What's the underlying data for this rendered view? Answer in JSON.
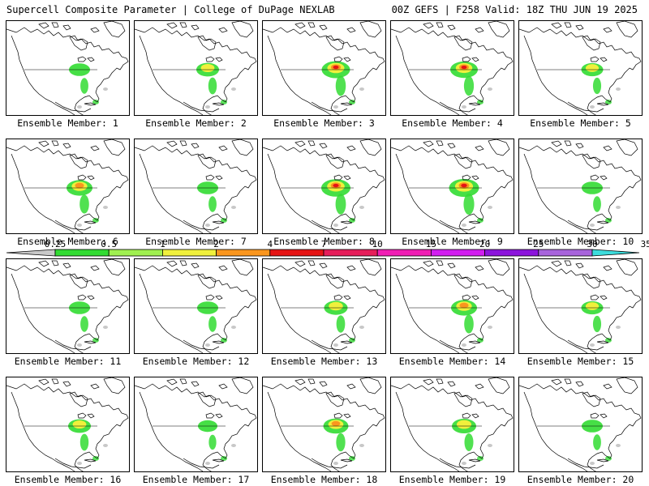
{
  "header": {
    "left_title": "Supercell Composite Parameter | College of DuPage NEXLAB",
    "right_title": "00Z GEFS | F258 Valid: 18Z THU JUN 19 2025"
  },
  "colorbar": {
    "labels": [
      "0.25",
      "0.5",
      "1",
      "2",
      "4",
      "7",
      "10",
      "15",
      "20",
      "25",
      "30",
      "35"
    ],
    "colors": [
      "#c8c8c8",
      "#32dc32",
      "#a0f050",
      "#f0f03c",
      "#fa961e",
      "#e61414",
      "#e61e5a",
      "#f01eb4",
      "#d21ef0",
      "#8c14dc",
      "#a864dc",
      "#3cdcdc"
    ]
  },
  "ensemble_label_prefix": "Ensemble Member:",
  "members": [
    {
      "number": "1",
      "intensity": 0.3
    },
    {
      "number": "2",
      "intensity": 0.4
    },
    {
      "number": "3",
      "intensity": 0.75
    },
    {
      "number": "4",
      "intensity": 0.7
    },
    {
      "number": "5",
      "intensity": 0.35
    },
    {
      "number": "6",
      "intensity": 0.6
    },
    {
      "number": "7",
      "intensity": 0.3
    },
    {
      "number": "8",
      "intensity": 0.8
    },
    {
      "number": "9",
      "intensity": 0.85
    },
    {
      "number": "10",
      "intensity": 0.3
    },
    {
      "number": "11",
      "intensity": 0.3
    },
    {
      "number": "12",
      "intensity": 0.3
    },
    {
      "number": "13",
      "intensity": 0.45
    },
    {
      "number": "14",
      "intensity": 0.6
    },
    {
      "number": "15",
      "intensity": 0.35
    },
    {
      "number": "16",
      "intensity": 0.4
    },
    {
      "number": "17",
      "intensity": 0.2
    },
    {
      "number": "18",
      "intensity": 0.55
    },
    {
      "number": "19",
      "intensity": 0.5
    },
    {
      "number": "20",
      "intensity": 0.3
    }
  ]
}
